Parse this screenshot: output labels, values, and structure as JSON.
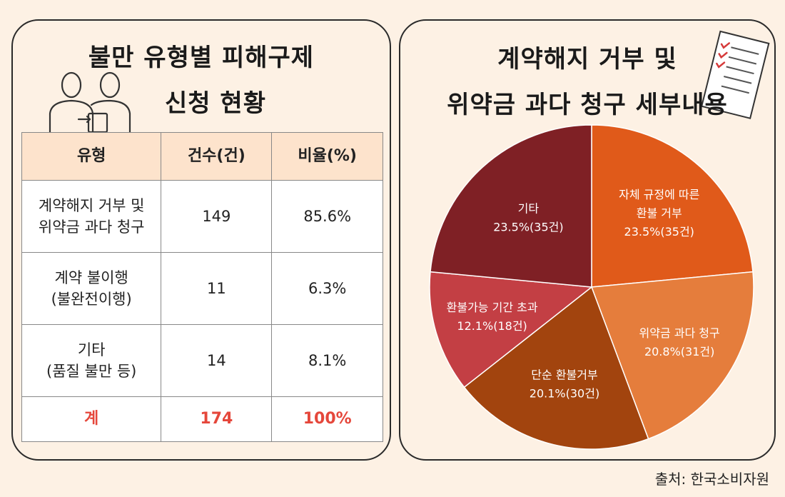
{
  "left_panel": {
    "title_line1": "불만 유형별 피해구제",
    "title_line2": "신청 현황",
    "table": {
      "headers": [
        "유형",
        "건수(건)",
        "비율(%)"
      ],
      "rows": [
        {
          "type_line1": "계약해지 거부 및",
          "type_line2": "위약금 과다 청구",
          "count": "149",
          "ratio": "85.6%"
        },
        {
          "type_line1": "계약 불이행",
          "type_line2": "(불완전이행)",
          "count": "11",
          "ratio": "6.3%"
        },
        {
          "type_line1": "기타",
          "type_line2": "(품질 불만 등)",
          "count": "14",
          "ratio": "8.1%"
        }
      ],
      "total": {
        "label": "계",
        "count": "174",
        "ratio": "100%"
      }
    }
  },
  "right_panel": {
    "title_line1": "계약해지 거부 및",
    "title_line2": "위약금 과다 청구 세부내용"
  },
  "chart_data": {
    "type": "pie",
    "title": "계약해지 거부 및 위약금 과다 청구 세부내용",
    "slices": [
      {
        "label": "자체 규정에 따른 환불 거부",
        "label_lines": [
          "자체 규정에 따른",
          "환불 거부"
        ],
        "value_text": "23.5%(35건)",
        "percent": 23.5,
        "count": 35,
        "color": "#e05a1a"
      },
      {
        "label": "위약금 과다 청구",
        "label_lines": [
          "위약금 과다 청구"
        ],
        "value_text": "20.8%(31건)",
        "percent": 20.8,
        "count": 31,
        "color": "#e57d3c"
      },
      {
        "label": "단순 환불거부",
        "label_lines": [
          "단순 환불거부"
        ],
        "value_text": "20.1%(30건)",
        "percent": 20.1,
        "count": 30,
        "color": "#a2440e"
      },
      {
        "label": "환불가능 기간 초과",
        "label_lines": [
          "환불가능 기간 초과"
        ],
        "value_text": "12.1%(18건)",
        "percent": 12.1,
        "count": 18,
        "color": "#c33f44"
      },
      {
        "label": "기타",
        "label_lines": [
          "기타"
        ],
        "value_text": "23.5%(35건)",
        "percent": 23.5,
        "count": 35,
        "color": "#7f2025"
      }
    ]
  },
  "source": "출처: 한국소비자원",
  "icons": [
    "people-icon",
    "checklist-icon"
  ]
}
